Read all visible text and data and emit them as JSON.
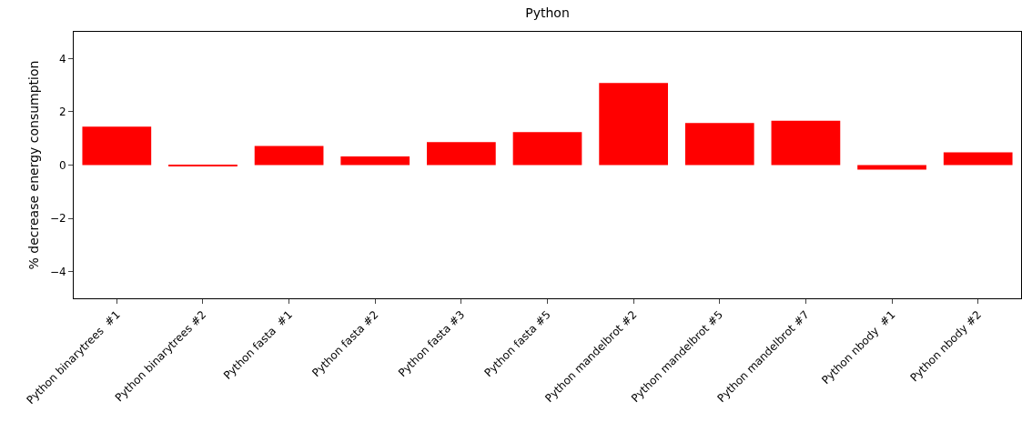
{
  "chart_data": {
    "type": "bar",
    "title": "Python",
    "ylabel": "% decrease energy consumption",
    "categories": [
      "Python binarytrees  #1",
      "Python binarytrees #2",
      "Python fasta  #1",
      "Python fasta #2",
      "Python fasta #3",
      "Python fasta #5",
      "Python mandelbrot #2",
      "Python mandelbrot #5",
      "Python mandelbrot #7",
      "Python nbody  #1",
      "Python nbody #2"
    ],
    "values": [
      1.44,
      -0.05,
      0.72,
      0.32,
      0.86,
      1.24,
      3.08,
      1.58,
      1.66,
      -0.17,
      0.48
    ],
    "color": "#ff0000",
    "ylim": [
      -5,
      5
    ],
    "yticks": [
      -4,
      -2,
      0,
      2,
      4
    ]
  }
}
